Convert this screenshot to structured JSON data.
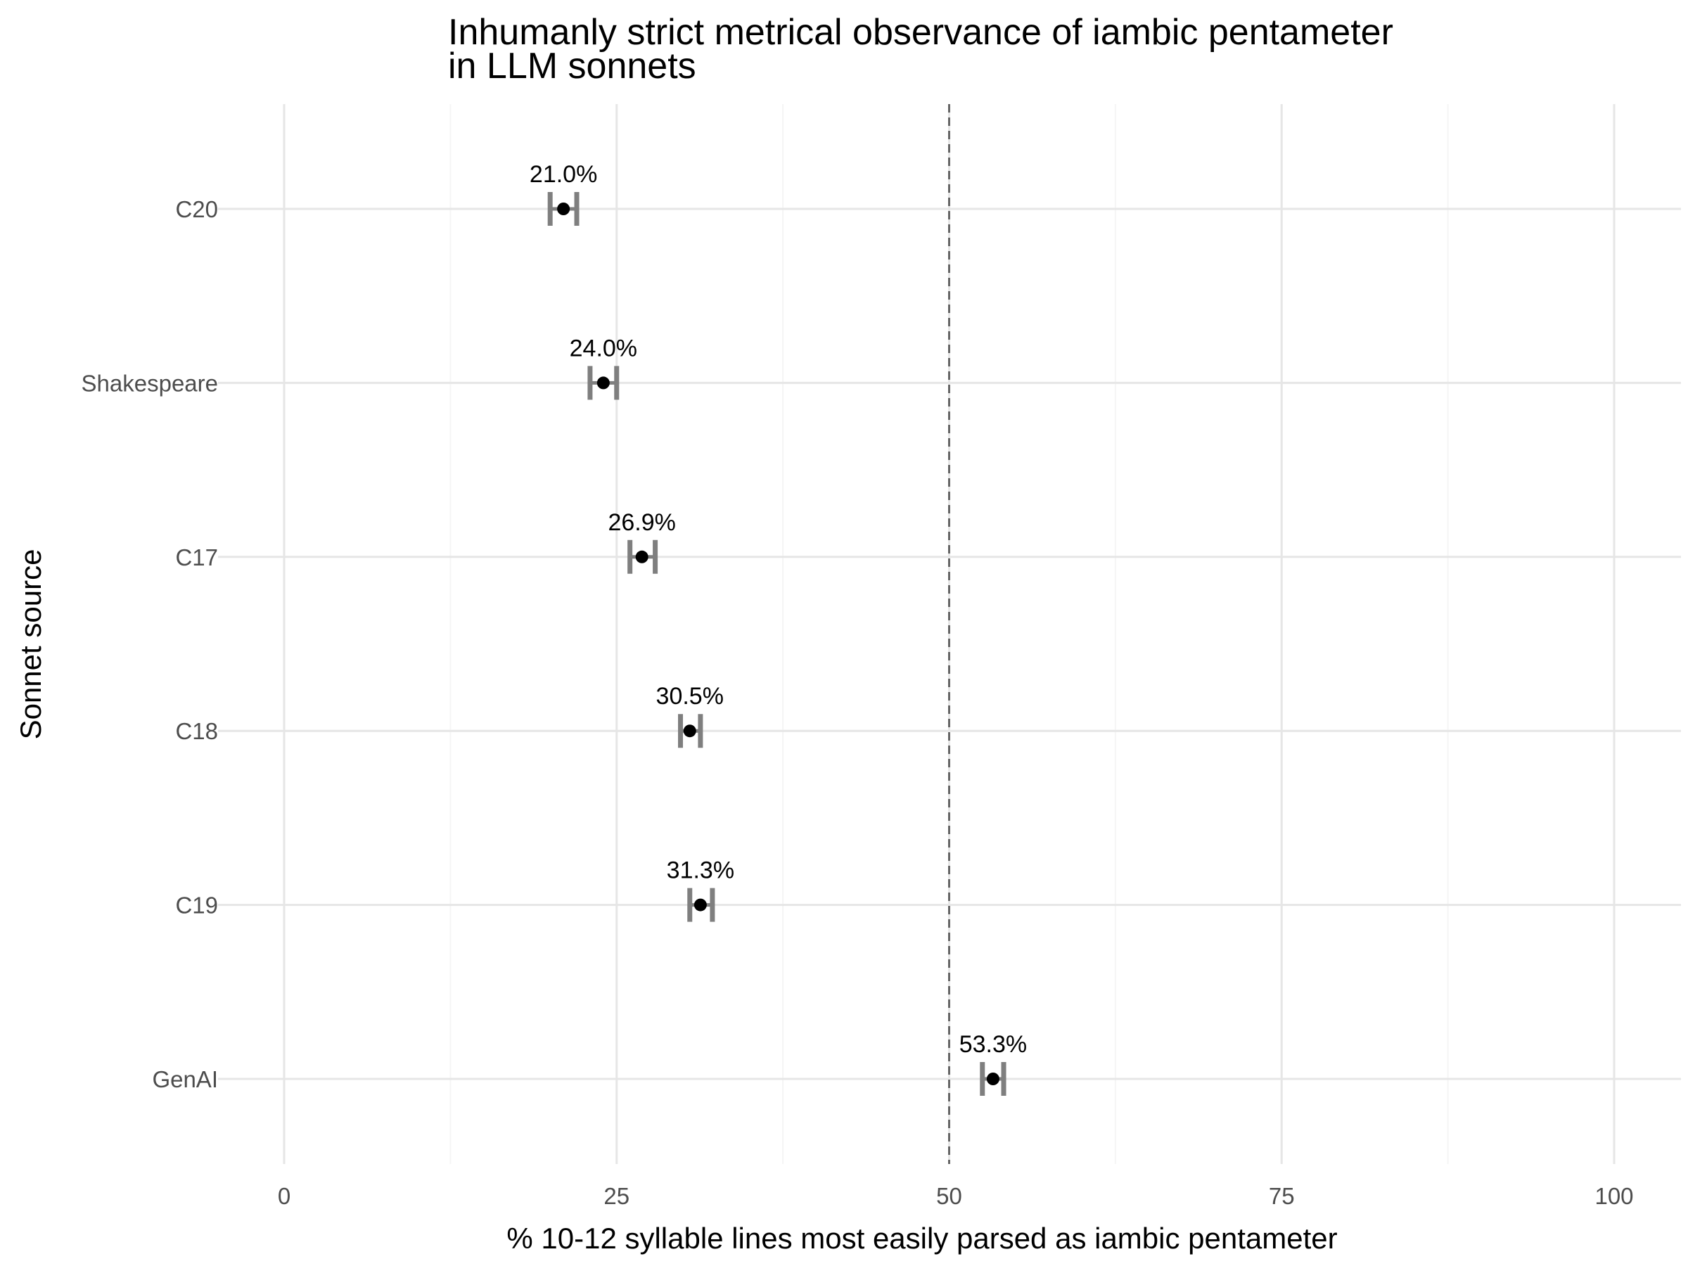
{
  "chart_data": {
    "type": "scatter",
    "title": "Inhumanly strict metrical observance of iambic pentameter",
    "subtitle": "in LLM sonnets",
    "xlabel": "% 10-12 syllable lines most easily parsed as iambic pentameter",
    "ylabel": "Sonnet source",
    "xlim": [
      0,
      100
    ],
    "x_ticks": [
      0,
      25,
      50,
      75,
      100
    ],
    "x_tick_labels": [
      "0",
      "25",
      "50",
      "75",
      "100"
    ],
    "grid": true,
    "legend": "none",
    "reference_line": {
      "x": 50,
      "style": "dashed",
      "color": "#666666"
    },
    "categories": [
      "C20",
      "Shakespeare",
      "C17",
      "C18",
      "C19",
      "GenAI"
    ],
    "values": [
      21.0,
      24.0,
      26.9,
      30.5,
      31.3,
      53.3
    ],
    "ci_low": [
      20.0,
      23.0,
      26.0,
      29.8,
      30.5,
      52.5
    ],
    "ci_high": [
      22.0,
      25.0,
      27.9,
      31.3,
      32.2,
      54.1
    ],
    "data_labels": [
      "21.0%",
      "24.0%",
      "26.9%",
      "30.5%",
      "31.3%",
      "53.3%"
    ],
    "colors": {
      "point": "#000000",
      "errorbar": "#7f7f7f",
      "grid": "#e6e6e6",
      "minor_grid": "#f5f5f5"
    }
  }
}
